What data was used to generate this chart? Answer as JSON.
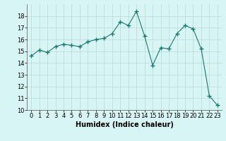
{
  "x": [
    0,
    1,
    2,
    3,
    4,
    5,
    6,
    7,
    8,
    9,
    10,
    11,
    12,
    13,
    14,
    15,
    16,
    17,
    18,
    19,
    20,
    21,
    22,
    23
  ],
  "y": [
    14.6,
    15.1,
    14.9,
    15.4,
    15.6,
    15.5,
    15.4,
    15.8,
    16.0,
    16.1,
    16.5,
    17.5,
    17.2,
    18.4,
    16.3,
    13.8,
    15.3,
    15.2,
    16.5,
    17.2,
    16.9,
    15.2,
    11.2,
    10.4
  ],
  "line_color": "#1a7a6e",
  "marker": "+",
  "marker_size": 4,
  "bg_color": "#d8f5f5",
  "grid_color": "#b8d8d8",
  "xlabel": "Humidex (Indice chaleur)",
  "xlabel_fontsize": 7,
  "tick_fontsize": 6,
  "xlim": [
    -0.5,
    23.5
  ],
  "ylim": [
    10,
    19
  ],
  "yticks": [
    10,
    11,
    12,
    13,
    14,
    15,
    16,
    17,
    18
  ],
  "xticks": [
    0,
    1,
    2,
    3,
    4,
    5,
    6,
    7,
    8,
    9,
    10,
    11,
    12,
    13,
    14,
    15,
    16,
    17,
    18,
    19,
    20,
    21,
    22,
    23
  ]
}
